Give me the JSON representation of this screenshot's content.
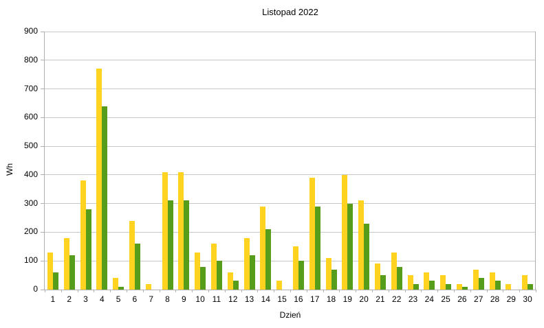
{
  "chart_data": {
    "type": "bar",
    "title": "Listopad 2022",
    "xlabel": "Dzień",
    "ylabel": "Wh",
    "ylim": [
      0,
      900
    ],
    "ytick_step": 100,
    "grid": true,
    "legend_position": "none",
    "categories": [
      "1",
      "2",
      "3",
      "4",
      "5",
      "6",
      "7",
      "8",
      "9",
      "10",
      "11",
      "12",
      "13",
      "14",
      "15",
      "16",
      "17",
      "18",
      "19",
      "20",
      "21",
      "22",
      "23",
      "24",
      "25",
      "26",
      "27",
      "28",
      "29",
      "30"
    ],
    "series": [
      {
        "name": "yellow",
        "color": "#ffd320",
        "values": [
          130,
          180,
          380,
          770,
          40,
          240,
          20,
          410,
          410,
          130,
          160,
          60,
          180,
          290,
          30,
          150,
          390,
          110,
          400,
          310,
          90,
          130,
          50,
          60,
          50,
          20,
          70,
          60,
          20,
          50
        ]
      },
      {
        "name": "green",
        "color": "#579d1c",
        "values": [
          60,
          120,
          280,
          640,
          10,
          160,
          0,
          310,
          310,
          80,
          100,
          30,
          120,
          210,
          0,
          100,
          290,
          70,
          300,
          230,
          50,
          80,
          20,
          30,
          20,
          10,
          40,
          30,
          0,
          20
        ]
      }
    ]
  }
}
